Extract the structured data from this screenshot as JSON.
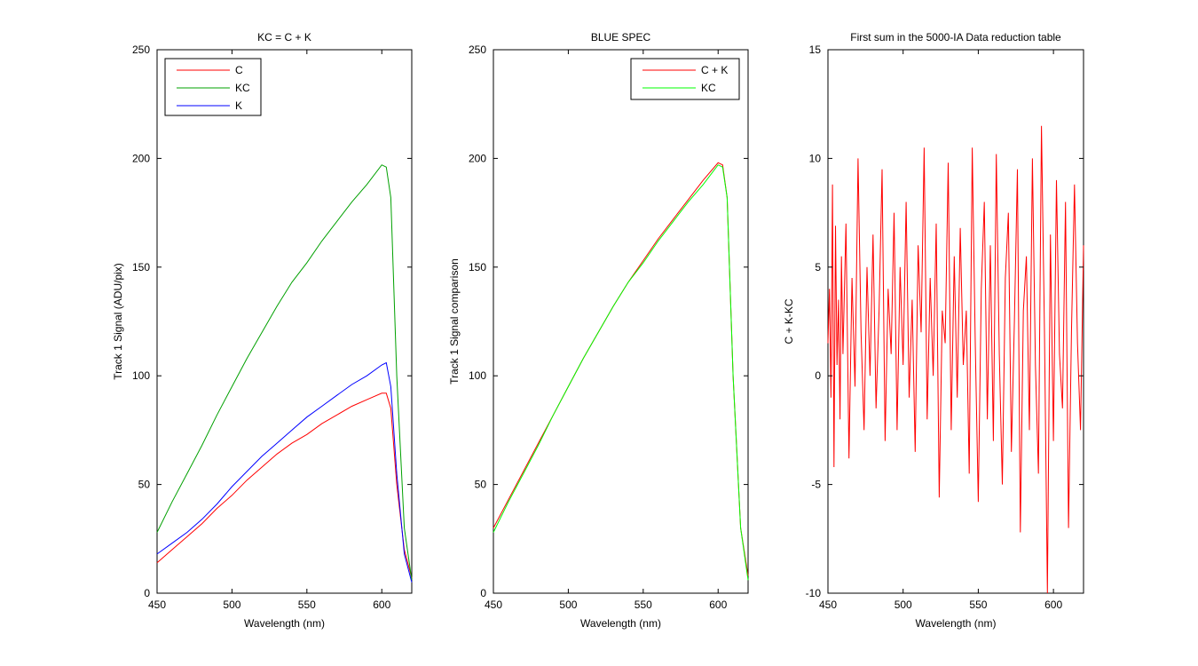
{
  "chart_data": [
    {
      "type": "line",
      "title": "KC = C + K",
      "xlabel": "Wavelength (nm)",
      "ylabel": "Track 1 Signal (ADU/pix)",
      "xlim": [
        450,
        620
      ],
      "ylim": [
        0,
        250
      ],
      "xticks": [
        450,
        500,
        550,
        600
      ],
      "yticks": [
        0,
        50,
        100,
        150,
        200,
        250
      ],
      "legend_position": "top-left",
      "series": [
        {
          "name": "C",
          "color": "#ff0000",
          "x": [
            450,
            460,
            470,
            480,
            490,
            500,
            510,
            520,
            530,
            540,
            550,
            560,
            570,
            580,
            590,
            600,
            603,
            606,
            610,
            615,
            620
          ],
          "y": [
            14,
            20,
            26,
            32,
            39,
            45,
            52,
            58,
            64,
            69,
            73,
            78,
            82,
            86,
            89,
            92,
            92,
            85,
            50,
            20,
            7
          ]
        },
        {
          "name": "KC",
          "color": "#00a000",
          "x": [
            450,
            460,
            470,
            480,
            490,
            500,
            510,
            520,
            530,
            540,
            550,
            560,
            570,
            580,
            590,
            600,
            603,
            606,
            610,
            615,
            620
          ],
          "y": [
            28,
            42,
            55,
            68,
            82,
            95,
            108,
            120,
            132,
            143,
            152,
            162,
            171,
            180,
            188,
            197,
            196,
            182,
            100,
            30,
            6
          ]
        },
        {
          "name": "K",
          "color": "#0000ff",
          "x": [
            450,
            460,
            470,
            480,
            490,
            500,
            510,
            520,
            530,
            540,
            550,
            560,
            570,
            580,
            590,
            600,
            603,
            606,
            610,
            615,
            620
          ],
          "y": [
            18,
            23,
            28,
            34,
            41,
            49,
            56,
            63,
            69,
            75,
            81,
            86,
            91,
            96,
            100,
            105,
            106,
            95,
            55,
            18,
            5
          ]
        }
      ]
    },
    {
      "type": "line",
      "title": "BLUE SPEC",
      "xlabel": "Wavelength (nm)",
      "ylabel": "Track 1 Signal comparison",
      "xlim": [
        450,
        620
      ],
      "ylim": [
        0,
        250
      ],
      "xticks": [
        450,
        500,
        550,
        600
      ],
      "yticks": [
        0,
        50,
        100,
        150,
        200,
        250
      ],
      "legend_position": "top-right",
      "series": [
        {
          "name": "C + K",
          "color": "#ff0000",
          "x": [
            450,
            460,
            470,
            480,
            490,
            500,
            510,
            520,
            530,
            540,
            550,
            560,
            570,
            580,
            590,
            600,
            603,
            606,
            610,
            615,
            620
          ],
          "y": [
            30,
            43,
            56,
            69,
            82,
            95,
            108,
            120,
            132,
            143,
            153,
            163,
            172,
            181,
            190,
            198,
            197,
            182,
            100,
            30,
            8
          ]
        },
        {
          "name": "KC",
          "color": "#00ff00",
          "x": [
            450,
            460,
            470,
            480,
            490,
            500,
            510,
            520,
            530,
            540,
            550,
            560,
            570,
            580,
            590,
            600,
            603,
            606,
            610,
            615,
            620
          ],
          "y": [
            28,
            42,
            55,
            68,
            82,
            95,
            108,
            120,
            132,
            143,
            152,
            162,
            171,
            180,
            188,
            197,
            196,
            182,
            100,
            30,
            6
          ]
        }
      ]
    },
    {
      "type": "line",
      "title": "First sum in the 5000-IA Data reduction table",
      "xlabel": "Wavelength (nm)",
      "ylabel": "C + K-KC",
      "xlim": [
        450,
        620
      ],
      "ylim": [
        -10,
        15
      ],
      "xticks": [
        450,
        500,
        550,
        600
      ],
      "yticks": [
        -10,
        -5,
        0,
        5,
        10,
        15
      ],
      "series": [
        {
          "name": "",
          "color": "#ff0000",
          "x": [
            450,
            451,
            452,
            453,
            454,
            455,
            456,
            457,
            458,
            459,
            460,
            462,
            464,
            466,
            468,
            470,
            472,
            474,
            476,
            478,
            480,
            482,
            484,
            486,
            488,
            490,
            492,
            494,
            496,
            498,
            500,
            502,
            504,
            506,
            508,
            510,
            512,
            514,
            516,
            518,
            520,
            522,
            524,
            526,
            528,
            530,
            532,
            534,
            536,
            538,
            540,
            542,
            544,
            546,
            548,
            550,
            552,
            554,
            556,
            558,
            560,
            562,
            564,
            566,
            568,
            570,
            572,
            574,
            576,
            578,
            580,
            582,
            584,
            586,
            588,
            590,
            592,
            594,
            596,
            598,
            600,
            602,
            604,
            606,
            608,
            610,
            612,
            614,
            616,
            618,
            620
          ],
          "y": [
            1.5,
            4.0,
            -1.0,
            8.8,
            -4.2,
            6.9,
            0.5,
            3.5,
            -2.0,
            5.5,
            1.0,
            7.0,
            -3.8,
            4.5,
            -0.5,
            10.0,
            2.0,
            -2.5,
            5.0,
            0.0,
            6.5,
            -1.5,
            3.0,
            9.5,
            -3.0,
            4.0,
            1.0,
            7.5,
            -2.5,
            5.0,
            0.5,
            8.0,
            -1.0,
            3.5,
            -3.5,
            6.0,
            2.0,
            10.5,
            -2.0,
            4.5,
            0.0,
            7.0,
            -5.6,
            3.0,
            1.5,
            9.8,
            -2.5,
            5.5,
            -1.0,
            6.8,
            0.5,
            3.0,
            -4.5,
            10.5,
            1.5,
            -5.8,
            4.0,
            8.0,
            -2.0,
            6.0,
            -3.0,
            10.2,
            1.0,
            -5.0,
            4.5,
            7.5,
            -3.5,
            2.5,
            9.5,
            -7.2,
            3.0,
            5.5,
            -2.5,
            10.0,
            0.5,
            -4.5,
            11.5,
            2.0,
            -10.0,
            6.5,
            -3.0,
            9.0,
            1.0,
            -1.5,
            8.0,
            -7.0,
            2.0,
            8.8,
            1.5,
            -2.5,
            6.0
          ]
        }
      ]
    }
  ]
}
